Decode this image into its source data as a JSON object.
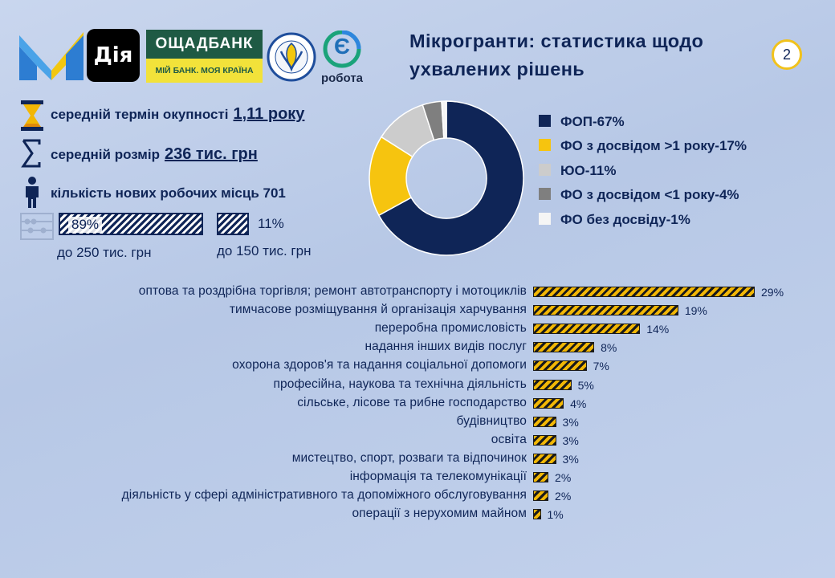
{
  "header": {
    "title_line1": "Мікрогранти: статистика щодо",
    "title_line2": "ухвалених рішень",
    "page_number": "2"
  },
  "logos": {
    "diia": "Дія",
    "oschadbank": "ОЩАДБАНК",
    "oschadbank_slogan": "МІЙ БАНК. МОЯ КРАЇНА",
    "robota": "робота",
    "robota_mark": "Є"
  },
  "stats": {
    "payback_label": "середній термін окупності",
    "payback_value": "1,11 року",
    "size_label": "середній розмір",
    "size_value": "236 тис. грн",
    "jobs_label": "кількість нових робочих місць 701",
    "share_250_pct": "89%",
    "share_250_label": "до 250 тис. грн",
    "share_150_pct": "11%",
    "share_150_label": "до 150 тис. грн",
    "share_250_value": 89,
    "share_150_value": 11
  },
  "colors": {
    "navy": "#0f2557",
    "yellow": "#f6c40f",
    "light_gray": "#cccccc",
    "dark_gray": "#7f7f7f",
    "white": "#f5f5f5",
    "hatch_yellow": "#f2b705"
  },
  "chart_data": [
    {
      "type": "pie",
      "donut": true,
      "legend_position": "right",
      "slices": [
        {
          "label": "ФОП-67%",
          "value": 67,
          "color": "#0f2557"
        },
        {
          "label": "ФО з досвідом >1 року-17%",
          "value": 17,
          "color": "#f6c40f"
        },
        {
          "label": "ЮО-11%",
          "value": 11,
          "color": "#cccccc"
        },
        {
          "label": "ФО з досвідом <1 року-4%",
          "value": 4,
          "color": "#7f7f7f"
        },
        {
          "label": "ФО без досвіду-1%",
          "value": 1,
          "color": "#f5f5f5"
        }
      ]
    },
    {
      "type": "bar",
      "orientation": "horizontal",
      "categories": [
        "оптова та роздрібна торгівля; ремонт автотранспорту і мотоциклів",
        "тимчасове розміщування й організація харчування",
        "переробна промисловість",
        "надання інших видів послуг",
        "охорона здоров'я та надання соціальної допомоги",
        "професійна, наукова та технічна діяльність",
        "сільське, лісове та рибне господарство",
        "будівництво",
        "освіта",
        "мистецтво, спорт, розваги та відпочинок",
        "інформація та телекомунікації",
        "діяльність у сфері адміністративного та допоміжного обслуговування",
        "операції з нерухомим майном"
      ],
      "values": [
        29,
        19,
        14,
        8,
        7,
        5,
        4,
        3,
        3,
        3,
        2,
        2,
        1
      ],
      "value_labels": [
        "29%",
        "19%",
        "14%",
        "8%",
        "7%",
        "5%",
        "4%",
        "3%",
        "3%",
        "3%",
        "2%",
        "2%",
        "1%"
      ]
    }
  ]
}
